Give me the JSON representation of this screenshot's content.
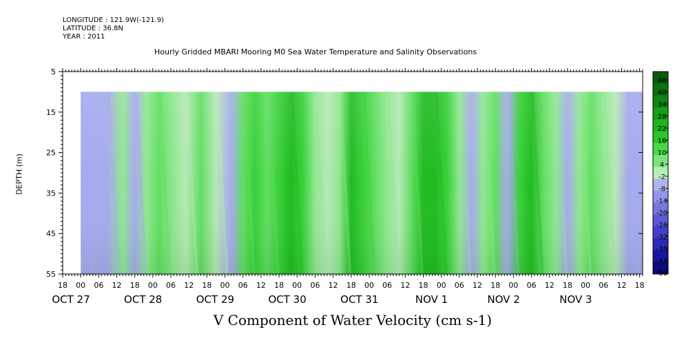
{
  "meta": {
    "longitude": "LONGITUDE : 121.9W(-121.9)",
    "latitude": "LATITUDE : 36.8N",
    "year": "YEAR : 2011"
  },
  "chart_data": {
    "type": "heatmap",
    "title": "Hourly Gridded MBARI Mooring M0 Sea Water Temperature and Salinity Observations",
    "xlabel": "V Component of Water Velocity (cm s-1)",
    "ylabel": "DEPTH (m)",
    "y_axis": {
      "range": [
        5,
        55
      ],
      "inverted": true,
      "ticks": [
        "5",
        "15",
        "25",
        "35",
        "45",
        "55"
      ]
    },
    "x_axis": {
      "range_hours": [
        -6,
        187
      ],
      "hour_ticks": [
        "18",
        "00",
        "06",
        "12",
        "18",
        "00",
        "06",
        "12",
        "18",
        "00",
        "06",
        "12",
        "18",
        "00",
        "06",
        "12",
        "18",
        "00",
        "06",
        "12",
        "18",
        "00",
        "06",
        "12",
        "18",
        "00",
        "06",
        "12",
        "18",
        "00",
        "06",
        "12",
        "18"
      ],
      "date_labels": [
        "OCT 27",
        "OCT 28",
        "OCT 29",
        "OCT 30",
        "OCT 31",
        "NOV  1",
        "NOV  2",
        "NOV  3"
      ]
    },
    "data_extent": {
      "depth_range": [
        10,
        55
      ]
    },
    "colorbar": {
      "levels": [
        "46",
        "40",
        "34",
        "28",
        "22",
        "16",
        "10",
        "4",
        "-2",
        "-8",
        "-14",
        "-20",
        "-26",
        "-32",
        "-38",
        "-44",
        "-50"
      ]
    },
    "bands": [
      {
        "t": 0,
        "v": -10
      },
      {
        "t": 4,
        "v": -6
      },
      {
        "t": 9,
        "v": -4
      },
      {
        "t": 14,
        "v": 4
      },
      {
        "t": 18,
        "v": -6
      },
      {
        "t": 22,
        "v": 8
      },
      {
        "t": 26,
        "v": 12
      },
      {
        "t": 31,
        "v": 6
      },
      {
        "t": 35,
        "v": 2
      },
      {
        "t": 40,
        "v": 10
      },
      {
        "t": 45,
        "v": 0
      },
      {
        "t": 50,
        "v": -4
      },
      {
        "t": 54,
        "v": 12
      },
      {
        "t": 58,
        "v": 20
      },
      {
        "t": 62,
        "v": 14
      },
      {
        "t": 66,
        "v": 16
      },
      {
        "t": 70,
        "v": 24
      },
      {
        "t": 74,
        "v": 18
      },
      {
        "t": 78,
        "v": 4
      },
      {
        "t": 82,
        "v": -2
      },
      {
        "t": 86,
        "v": 8
      },
      {
        "t": 90,
        "v": 22
      },
      {
        "t": 94,
        "v": 20
      },
      {
        "t": 98,
        "v": 12
      },
      {
        "t": 102,
        "v": 8
      },
      {
        "t": 106,
        "v": -2
      },
      {
        "t": 110,
        "v": 10
      },
      {
        "t": 114,
        "v": 22
      },
      {
        "t": 118,
        "v": 22
      },
      {
        "t": 122,
        "v": 16
      },
      {
        "t": 126,
        "v": 6
      },
      {
        "t": 130,
        "v": -4
      },
      {
        "t": 134,
        "v": 8
      },
      {
        "t": 138,
        "v": 14
      },
      {
        "t": 142,
        "v": -6
      },
      {
        "t": 146,
        "v": 18
      },
      {
        "t": 150,
        "v": 24
      },
      {
        "t": 154,
        "v": 12
      },
      {
        "t": 158,
        "v": 8
      },
      {
        "t": 162,
        "v": -6
      },
      {
        "t": 166,
        "v": 6
      },
      {
        "t": 170,
        "v": 12
      },
      {
        "t": 174,
        "v": 4
      },
      {
        "t": 178,
        "v": 2
      },
      {
        "t": 182,
        "v": -8
      }
    ]
  }
}
